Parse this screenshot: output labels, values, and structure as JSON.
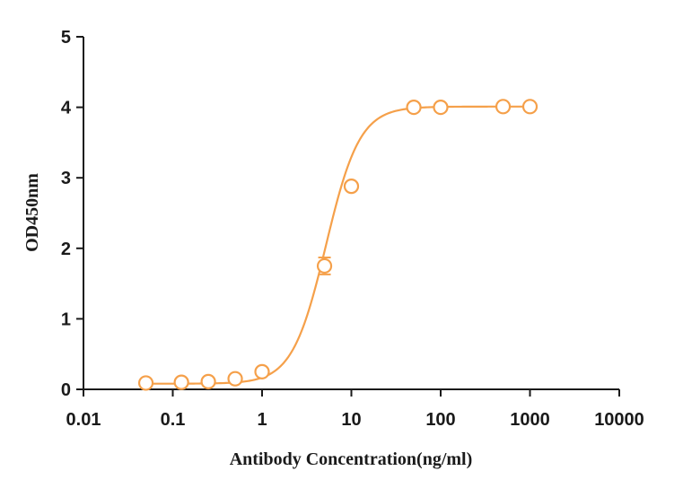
{
  "chart_data": {
    "type": "scatter",
    "title": "",
    "xlabel": "Antibody Concentration(ng/ml)",
    "ylabel": "OD450nm",
    "x_scale": "log",
    "xlim": [
      0.01,
      10000
    ],
    "ylim": [
      0,
      5
    ],
    "x_ticks": [
      "0.01",
      "0.1",
      "1",
      "10",
      "100",
      "1000",
      "10000"
    ],
    "y_ticks": [
      "0",
      "1",
      "2",
      "3",
      "4",
      "5"
    ],
    "grid": false,
    "legend": "none",
    "color": "#f5a04a",
    "series": [
      {
        "x": [
          0.05,
          0.125,
          0.25,
          0.5,
          1,
          5,
          10,
          50,
          100,
          500,
          1000
        ],
        "y": [
          0.09,
          0.1,
          0.11,
          0.15,
          0.25,
          1.75,
          2.88,
          4.0,
          4.0,
          4.01,
          4.01
        ],
        "error": [
          0,
          0,
          0,
          0,
          0,
          0.12,
          0,
          0,
          0,
          0,
          0
        ],
        "fit": "4PL"
      }
    ]
  }
}
